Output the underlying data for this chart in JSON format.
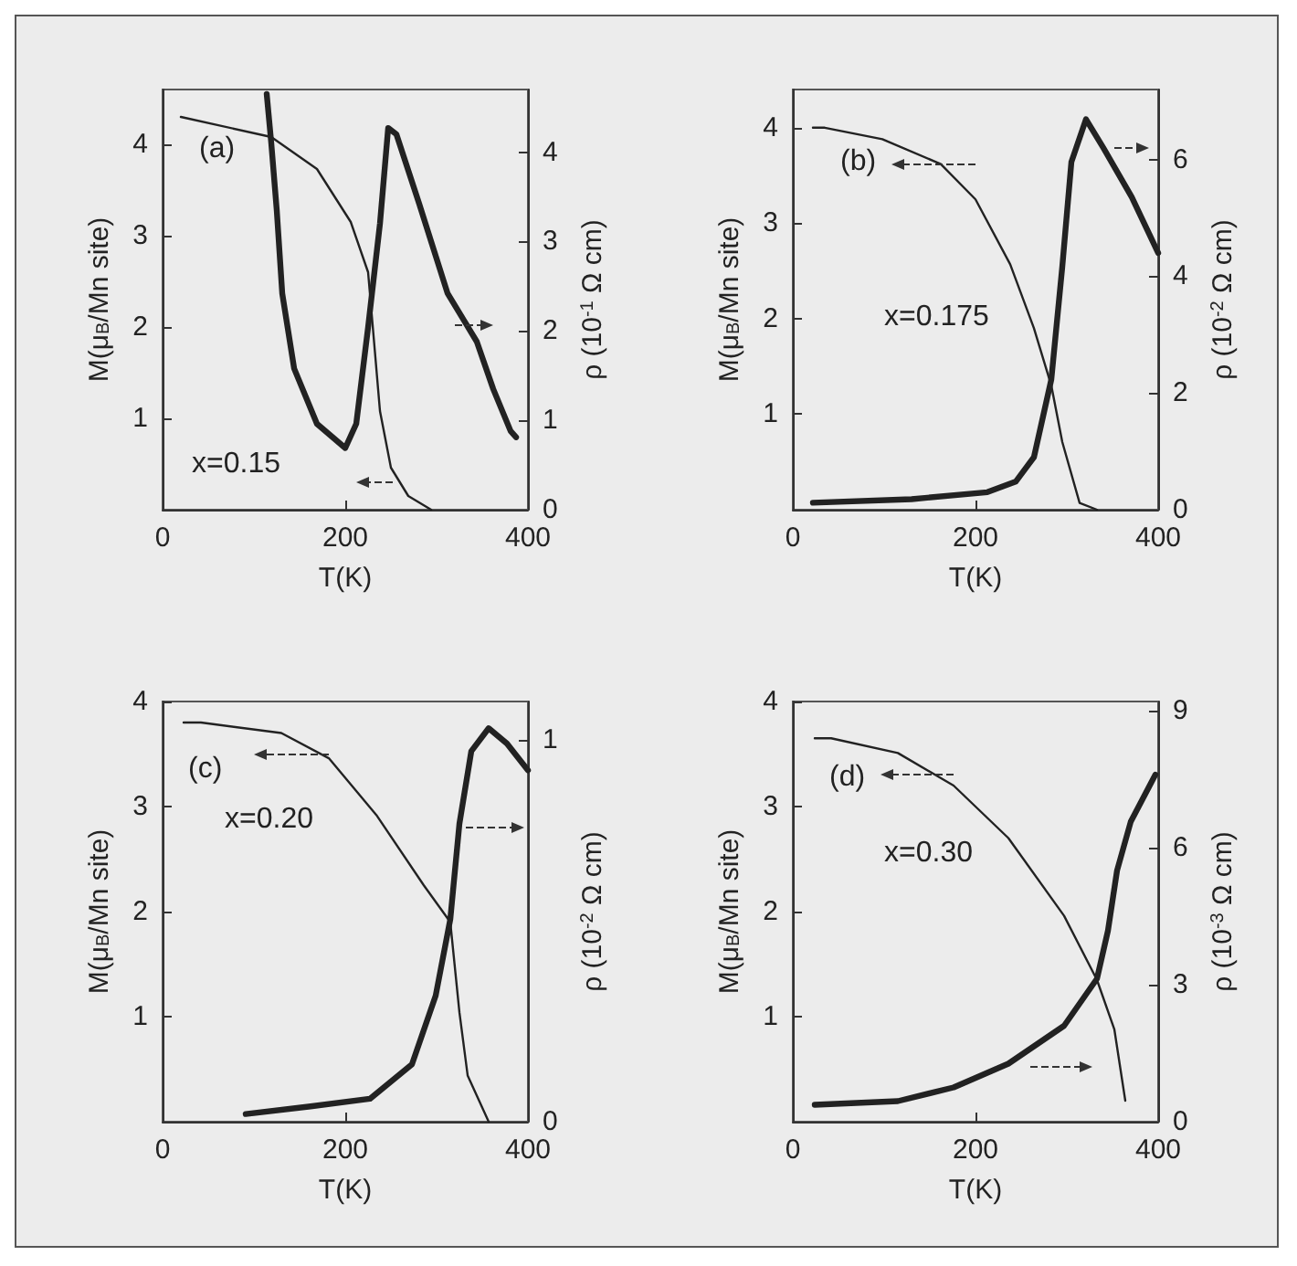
{
  "chart_data": [
    {
      "type": "line",
      "xlabel": "T(K)",
      "ylabel": "M(μ$_{B}$/Mn site)",
      "y2label": "ρ (10$^{-1}$ Ω cm)",
      "annotations": [
        "(a)",
        "x=0.15"
      ],
      "xlim": [
        0,
        400
      ],
      "xticks": [
        0,
        200,
        400
      ],
      "ylim": [
        0,
        4.6
      ],
      "yticks": [
        1,
        2,
        3,
        4
      ],
      "y2lim": [
        0,
        4.7
      ],
      "y2ticks": [
        0,
        1,
        2,
        3,
        4
      ],
      "marker": "none",
      "grid": false,
      "series": [
        {
          "color": "#222222",
          "x": [
            20,
            119,
            169,
            206,
            225,
            231,
            238,
            250,
            269,
            294
          ],
          "values": [
            4.3,
            4.08,
            3.73,
            3.15,
            2.6,
            1.9,
            1.08,
            0.46,
            0.15,
            0
          ]
        },
        {
          "color": "#222222",
          "axis": "y2",
          "x": [
            114,
            119,
            125,
            131,
            144,
            169,
            200,
            212,
            225,
            238,
            247,
            256,
            281,
            312,
            344,
            362,
            381,
            387
          ],
          "values": [
            4.65,
            4.1,
            3.35,
            2.42,
            1.58,
            0.96,
            0.69,
            0.96,
            2.04,
            3.2,
            4.27,
            4.2,
            3.42,
            2.42,
            1.88,
            1.35,
            0.88,
            0.81
          ]
        }
      ]
    },
    {
      "type": "line",
      "xlabel": "T(K)",
      "ylabel": "M(μ$_{B}$/Mn site)",
      "y2label": "ρ (10$^{-2}$ Ω cm)",
      "annotations": [
        "(b)",
        "x=0.175"
      ],
      "xlim": [
        0,
        400
      ],
      "xticks": [
        0,
        200,
        400
      ],
      "ylim": [
        0,
        4.4
      ],
      "yticks": [
        1,
        2,
        3,
        4
      ],
      "y2lim": [
        0,
        7.2
      ],
      "y2ticks": [
        0,
        2,
        4,
        6
      ],
      "marker": "none",
      "grid": false,
      "series": [
        {
          "color": "#222222",
          "x": [
            22,
            35,
            98,
            162,
            200,
            238,
            264,
            283,
            295,
            314,
            333
          ],
          "values": [
            4.0,
            4.0,
            3.88,
            3.62,
            3.25,
            2.57,
            1.9,
            1.3,
            0.71,
            0.07,
            0
          ]
        },
        {
          "color": "#222222",
          "axis": "y2",
          "x": [
            22,
            130,
            213,
            244,
            264,
            283,
            295,
            305,
            321,
            340,
            371,
            400
          ],
          "values": [
            0.12,
            0.18,
            0.3,
            0.48,
            0.9,
            2.23,
            4.16,
            5.96,
            6.69,
            6.2,
            5.36,
            4.4
          ]
        }
      ]
    },
    {
      "type": "line",
      "xlabel": "T(K)",
      "ylabel": "M(μ$_{B}$/Mn site)",
      "y2label": "ρ (10$^{-2}$ Ω cm)",
      "annotations": [
        "(c)",
        "x=0.20"
      ],
      "xlim": [
        0,
        400
      ],
      "xticks": [
        0,
        200,
        400
      ],
      "ylim": [
        0,
        4
      ],
      "yticks": [
        1,
        2,
        3,
        4
      ],
      "y2lim": [
        0,
        1.1
      ],
      "y2ticks": [
        0,
        1
      ],
      "marker": "none",
      "grid": false,
      "series": [
        {
          "color": "#222222",
          "x": [
            23,
            42,
            130,
            182,
            234,
            286,
            315,
            325,
            334,
            357
          ],
          "values": [
            3.8,
            3.8,
            3.7,
            3.46,
            2.92,
            2.25,
            1.9,
            1.04,
            0.44,
            0
          ]
        },
        {
          "color": "#222222",
          "axis": "y2",
          "x": [
            91,
            162,
            227,
            273,
            299,
            315,
            325,
            338,
            357,
            377,
            400
          ],
          "values": [
            0.02,
            0.04,
            0.06,
            0.15,
            0.33,
            0.53,
            0.78,
            0.97,
            1.03,
            0.99,
            0.92
          ]
        }
      ]
    },
    {
      "type": "line",
      "xlabel": "T(K)",
      "ylabel": "M(μ$_{B}$/Mn site)",
      "y2label": "ρ (10$^{-3}$ Ω cm)",
      "annotations": [
        "(d)",
        "x=0.30"
      ],
      "xlim": [
        0,
        400
      ],
      "xticks": [
        0,
        200,
        400
      ],
      "ylim": [
        0,
        4
      ],
      "yticks": [
        1,
        2,
        3,
        4
      ],
      "y2lim": [
        0,
        9.2
      ],
      "y2ticks": [
        0,
        3,
        6,
        9
      ],
      "marker": "none",
      "grid": false,
      "series": [
        {
          "color": "#222222",
          "x": [
            24,
            42,
            115,
            176,
            236,
            297,
            333,
            352,
            364
          ],
          "values": [
            3.65,
            3.65,
            3.51,
            3.2,
            2.7,
            1.96,
            1.35,
            0.88,
            0.2
          ]
        },
        {
          "color": "#222222",
          "axis": "y2",
          "x": [
            24,
            115,
            176,
            236,
            297,
            333,
            345,
            355,
            370,
            397
          ],
          "values": [
            0.37,
            0.45,
            0.75,
            1.27,
            2.1,
            3.13,
            4.18,
            5.5,
            6.57,
            7.6
          ]
        }
      ]
    }
  ]
}
